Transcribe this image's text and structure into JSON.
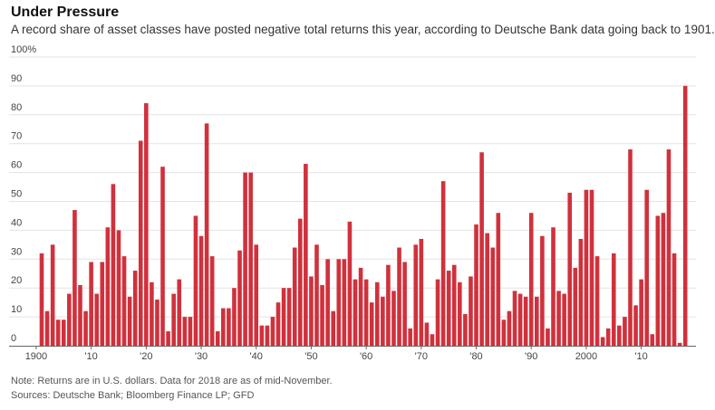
{
  "title": "Under Pressure",
  "subtitle": "A record share of asset classes have posted negative total returns this year, according to Deutsche Bank data going back to 1901.",
  "note": "Note: Returns are in U.S. dollars. Data for 2018 are as of mid-November.",
  "sources": "Sources: Deutsche Bank; Bloomberg Finance LP; GFD",
  "chart_data": {
    "type": "bar",
    "title": "Under Pressure",
    "xlabel": "",
    "ylabel": "",
    "ylim": [
      0,
      100
    ],
    "grid": true,
    "bar_color": "#d0313c",
    "y_ticks": [
      {
        "value": 0,
        "label": "0"
      },
      {
        "value": 10,
        "label": "10"
      },
      {
        "value": 20,
        "label": "20"
      },
      {
        "value": 30,
        "label": "30"
      },
      {
        "value": 40,
        "label": "40"
      },
      {
        "value": 50,
        "label": "50"
      },
      {
        "value": 60,
        "label": "60"
      },
      {
        "value": 70,
        "label": "70"
      },
      {
        "value": 80,
        "label": "80"
      },
      {
        "value": 90,
        "label": "90"
      },
      {
        "value": 100,
        "label": "100%"
      }
    ],
    "x_ticks": [
      {
        "value": 1900,
        "label": "1900"
      },
      {
        "value": 1910,
        "label": "'10"
      },
      {
        "value": 1920,
        "label": "'20"
      },
      {
        "value": 1930,
        "label": "'30"
      },
      {
        "value": 1940,
        "label": "'40"
      },
      {
        "value": 1950,
        "label": "'50"
      },
      {
        "value": 1960,
        "label": "'60"
      },
      {
        "value": 1970,
        "label": "'70"
      },
      {
        "value": 1980,
        "label": "'80"
      },
      {
        "value": 1990,
        "label": "'90"
      },
      {
        "value": 2000,
        "label": "2000"
      },
      {
        "value": 2010,
        "label": "'10"
      }
    ],
    "x_start": 1901,
    "values": [
      32,
      12,
      35,
      9,
      9,
      18,
      47,
      21,
      12,
      29,
      18,
      29,
      41,
      56,
      40,
      31,
      17,
      26,
      71,
      84,
      22,
      16,
      62,
      5,
      18,
      23,
      10,
      10,
      45,
      38,
      77,
      31,
      5,
      13,
      13,
      20,
      33,
      60,
      60,
      35,
      7,
      7,
      10,
      15,
      20,
      20,
      34,
      44,
      63,
      24,
      35,
      21,
      30,
      12,
      30,
      30,
      43,
      23,
      27,
      23,
      15,
      22,
      17,
      28,
      19,
      34,
      29,
      6,
      35,
      37,
      8,
      4,
      23,
      57,
      26,
      28,
      22,
      11,
      24,
      42,
      67,
      39,
      34,
      46,
      9,
      12,
      19,
      18,
      17,
      46,
      17,
      38,
      6,
      41,
      19,
      18,
      53,
      27,
      37,
      54,
      54,
      31,
      3,
      6,
      32,
      7,
      10,
      68,
      14,
      23,
      54,
      4,
      45,
      46,
      68,
      32,
      1,
      90
    ]
  }
}
